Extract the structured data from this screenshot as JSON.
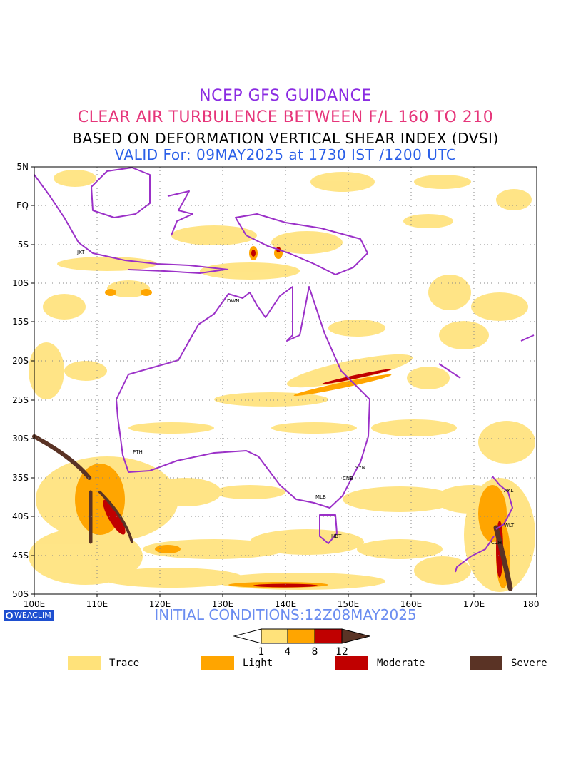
{
  "titles": {
    "line1": "NCEP GFS GUIDANCE",
    "line2": "CLEAR AIR TURBULENCE BETWEEN F/L 160 TO 210",
    "line3": "BASED ON DEFORMATION VERTICAL SHEAR INDEX (DVSI)",
    "line4": "VALID For: 09MAY2025 at 1730 IST /1200 UTC"
  },
  "map": {
    "lat_labels": [
      "5N",
      "EQ",
      "5S",
      "10S",
      "15S",
      "20S",
      "25S",
      "30S",
      "35S",
      "40S",
      "45S",
      "50S"
    ],
    "lon_labels": [
      "100E",
      "110E",
      "120E",
      "130E",
      "140E",
      "150E",
      "160E",
      "170E",
      "180"
    ],
    "cities": [
      {
        "code": "JKT"
      },
      {
        "code": "DWN"
      },
      {
        "code": "PTH"
      },
      {
        "code": "SYN"
      },
      {
        "code": "CNB"
      },
      {
        "code": "MLB"
      },
      {
        "code": "HBT"
      },
      {
        "code": "AKL"
      },
      {
        "code": "WLT"
      },
      {
        "code": "CCH"
      }
    ],
    "colors": {
      "coast": "#9b30c8",
      "trace": "#ffe27a",
      "light": "#ffa500",
      "moderate": "#c00000",
      "severe": "#5a3325"
    }
  },
  "initial_conditions": "INITIAL CONDITIONS:12Z08MAY2025",
  "badge": {
    "text": "WEACLIM",
    "icon": "copyright-icon"
  },
  "colorbar": {
    "ticks": [
      "1",
      "4",
      "8",
      "12"
    ]
  },
  "legend": [
    {
      "label": "Trace",
      "color": "#ffe27a"
    },
    {
      "label": "Light",
      "color": "#ffa500"
    },
    {
      "label": "Moderate",
      "color": "#c00000"
    },
    {
      "label": "Severe",
      "color": "#5a3325"
    }
  ]
}
